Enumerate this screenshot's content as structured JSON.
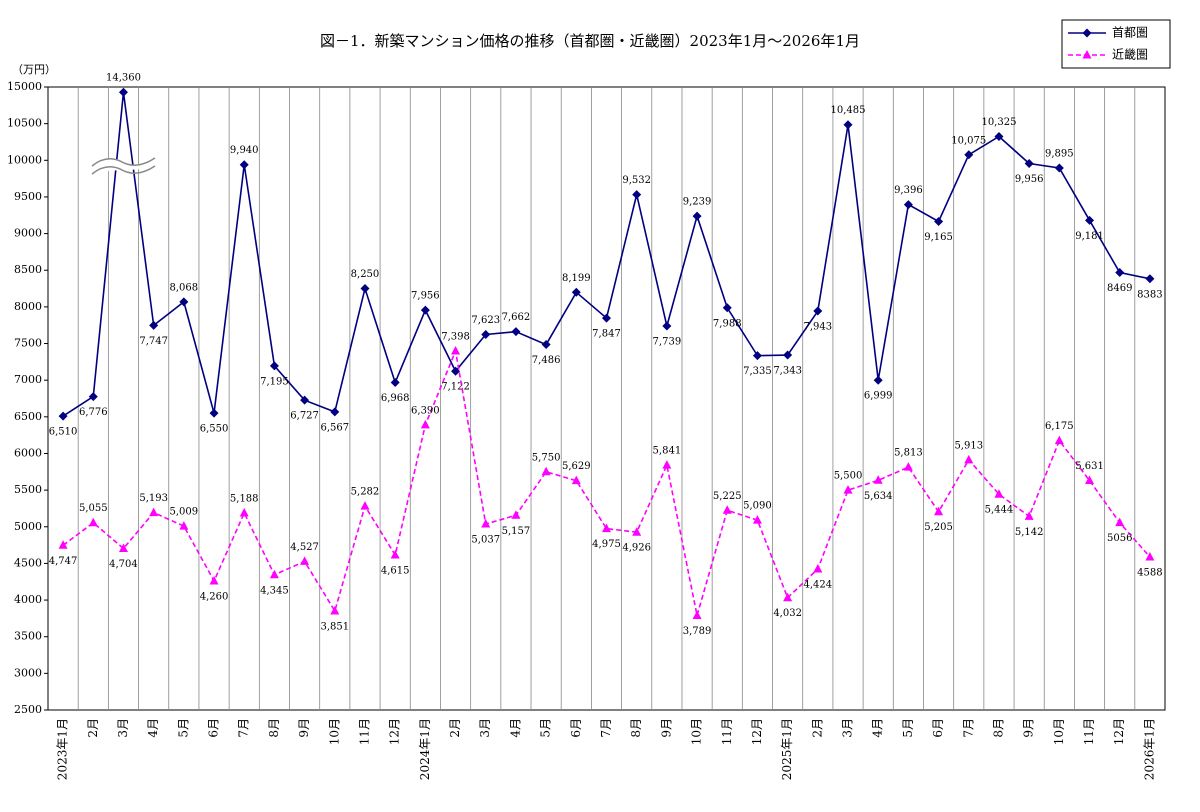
{
  "chart_data": {
    "type": "line",
    "title": "図－1．新築マンション価格の推移（首都圏・近畿圏）2023年1月～2026年1月",
    "y_label": "（万円）",
    "categories": [
      "2023年1月",
      "2月",
      "3月",
      "4月",
      "5月",
      "6月",
      "7月",
      "8月",
      "9月",
      "10月",
      "11月",
      "12月",
      "2024年1月",
      "2月",
      "3月",
      "4月",
      "5月",
      "6月",
      "7月",
      "8月",
      "9月",
      "10月",
      "11月",
      "12月",
      "2025年1月",
      "2月",
      "3月",
      "4月",
      "5月",
      "6月",
      "7月",
      "8月",
      "9月",
      "10月",
      "11月",
      "12月",
      "2026年1月"
    ],
    "series": [
      {
        "name": "首都圏",
        "color": "#000080",
        "marker": "diamond",
        "dashed": false,
        "values": [
          6510,
          6776,
          14360,
          7747,
          8068,
          6550,
          9940,
          7195,
          6727,
          6567,
          8250,
          6968,
          7956,
          7122,
          7623,
          7662,
          7486,
          8199,
          7847,
          9532,
          7739,
          9239,
          7988,
          7335,
          7343,
          7943,
          10485,
          6999,
          9396,
          9165,
          10075,
          10325,
          9956,
          9895,
          9181,
          8469,
          8383
        ],
        "value_labels": [
          "6,510",
          "6,776",
          "14,360",
          "7,747",
          "8,068",
          "6,550",
          "9,940",
          "7,195",
          "6,727",
          "6,567",
          "8,250",
          "6,968",
          "7,956",
          "7,122",
          "7,623",
          "7,662",
          "7,486",
          "8,199",
          "7,847",
          "9,532",
          "7,739",
          "9,239",
          "7,988",
          "7,335",
          "7,343",
          "7,943",
          "10,485",
          "6,999",
          "9,396",
          "9,165",
          "10,075",
          "10,325",
          "9,956",
          "9,895",
          "9,181",
          "8469",
          "8383"
        ]
      },
      {
        "name": "近畿圏",
        "color": "#ff00ff",
        "marker": "triangle",
        "dashed": true,
        "values": [
          4747,
          5055,
          4704,
          5193,
          5009,
          4260,
          5188,
          4345,
          4527,
          3851,
          5282,
          4615,
          6390,
          7398,
          5037,
          5157,
          5750,
          5629,
          4975,
          4926,
          5841,
          3789,
          5225,
          5090,
          4032,
          4424,
          5500,
          5634,
          5813,
          5205,
          5913,
          5444,
          5142,
          6175,
          5631,
          5056,
          4588
        ],
        "value_labels": [
          "4,747",
          "5,055",
          "4,704",
          "5,193",
          "5,009",
          "4,260",
          "5,188",
          "4,345",
          "4,527",
          "3,851",
          "5,282",
          "4,615",
          "6,390",
          "7,398",
          "5,037",
          "5,157",
          "5,750",
          "5,629",
          "4,975",
          "4,926",
          "5,841",
          "3,789",
          "5,225",
          "5,090",
          "4,032",
          "4,424",
          "5,500",
          "5,634",
          "5,813",
          "5,205",
          "5,913",
          "5,444",
          "5,142",
          "6,175",
          "5,631",
          "5056",
          "4588"
        ]
      }
    ],
    "ylim": [
      2500,
      15000
    ],
    "axis_break": [
      10500,
      15000
    ],
    "yticks": [
      2500,
      3000,
      3500,
      4000,
      4500,
      5000,
      5500,
      6000,
      6500,
      7000,
      7500,
      8000,
      8500,
      9000,
      9500,
      10000,
      10500,
      15000
    ],
    "legend": "upper right"
  }
}
